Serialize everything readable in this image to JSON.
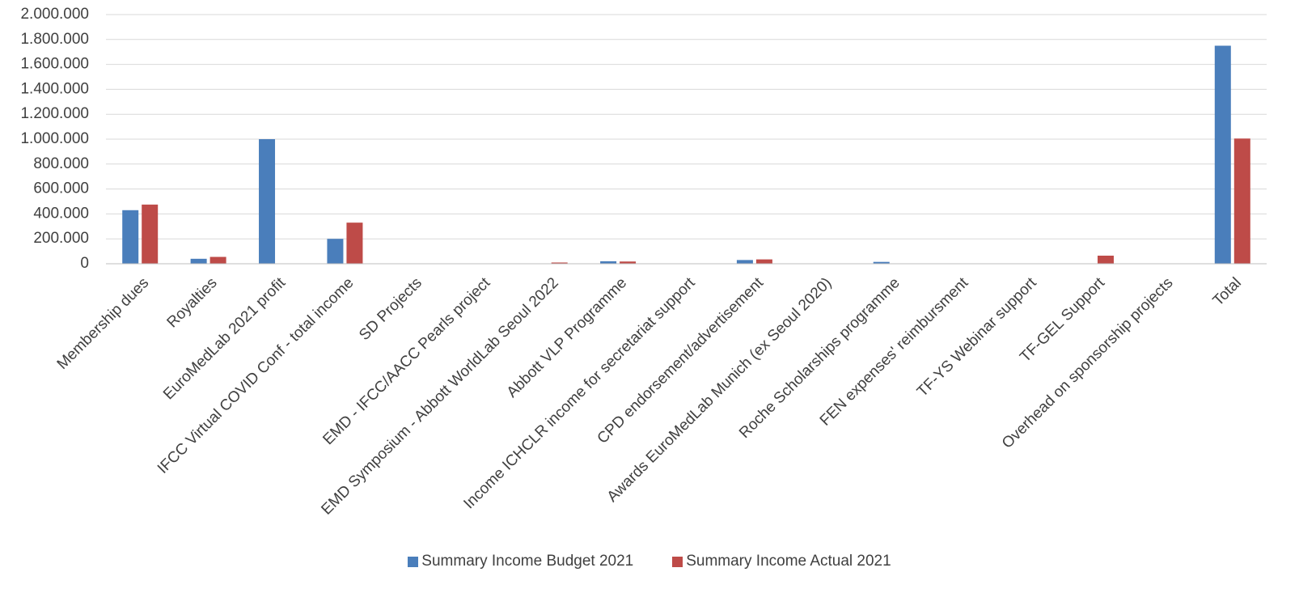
{
  "chart_data": {
    "type": "bar",
    "categories": [
      "Membership dues",
      "Royalties",
      "EuroMedLab 2021 profit",
      "IFCC Virtual COVID Conf  - total income",
      "SD Projects",
      "EMD - IFCC/AACC Pearls project",
      "EMD Symposium - Abbott WorldLab Seoul 2022",
      "Abbott VLP Programme",
      "Income ICHCLR income for secretariat support",
      "CPD endorsement/advertisement",
      "Awards EuroMedLab Munich (ex Seoul 2020)",
      "Roche Scholarships programme",
      "FEN expenses' reimbursment",
      "TF-YS Webinar support",
      "TF-GEL Support",
      "Overhead on sponsorship projects",
      "Total"
    ],
    "series": [
      {
        "name": "Summary Income  Budget 2021",
        "color": "#4a7ebb",
        "values": [
          430000,
          40000,
          1000000,
          200000,
          0,
          0,
          0,
          20000,
          0,
          30000,
          0,
          15000,
          0,
          0,
          0,
          0,
          1750000
        ]
      },
      {
        "name": "Summary Income Actual 2021",
        "color": "#be4b48",
        "values": [
          475000,
          55000,
          0,
          330000,
          0,
          0,
          10000,
          18000,
          0,
          35000,
          0,
          0,
          0,
          0,
          65000,
          0,
          1005000
        ]
      }
    ],
    "ylim": [
      0,
      2000000
    ],
    "yticks": [
      0,
      200000,
      400000,
      600000,
      800000,
      1000000,
      1200000,
      1400000,
      1600000,
      1800000,
      2000000
    ],
    "ytick_labels": [
      "0",
      "200.000",
      "400.000",
      "600.000",
      "800.000",
      "1.000.000",
      "1.200.000",
      "1.400.000",
      "1.600.000",
      "1.800.000",
      "2.000.000"
    ],
    "grid": true,
    "legend_position": "bottom",
    "title": "",
    "xlabel": "",
    "ylabel": ""
  }
}
